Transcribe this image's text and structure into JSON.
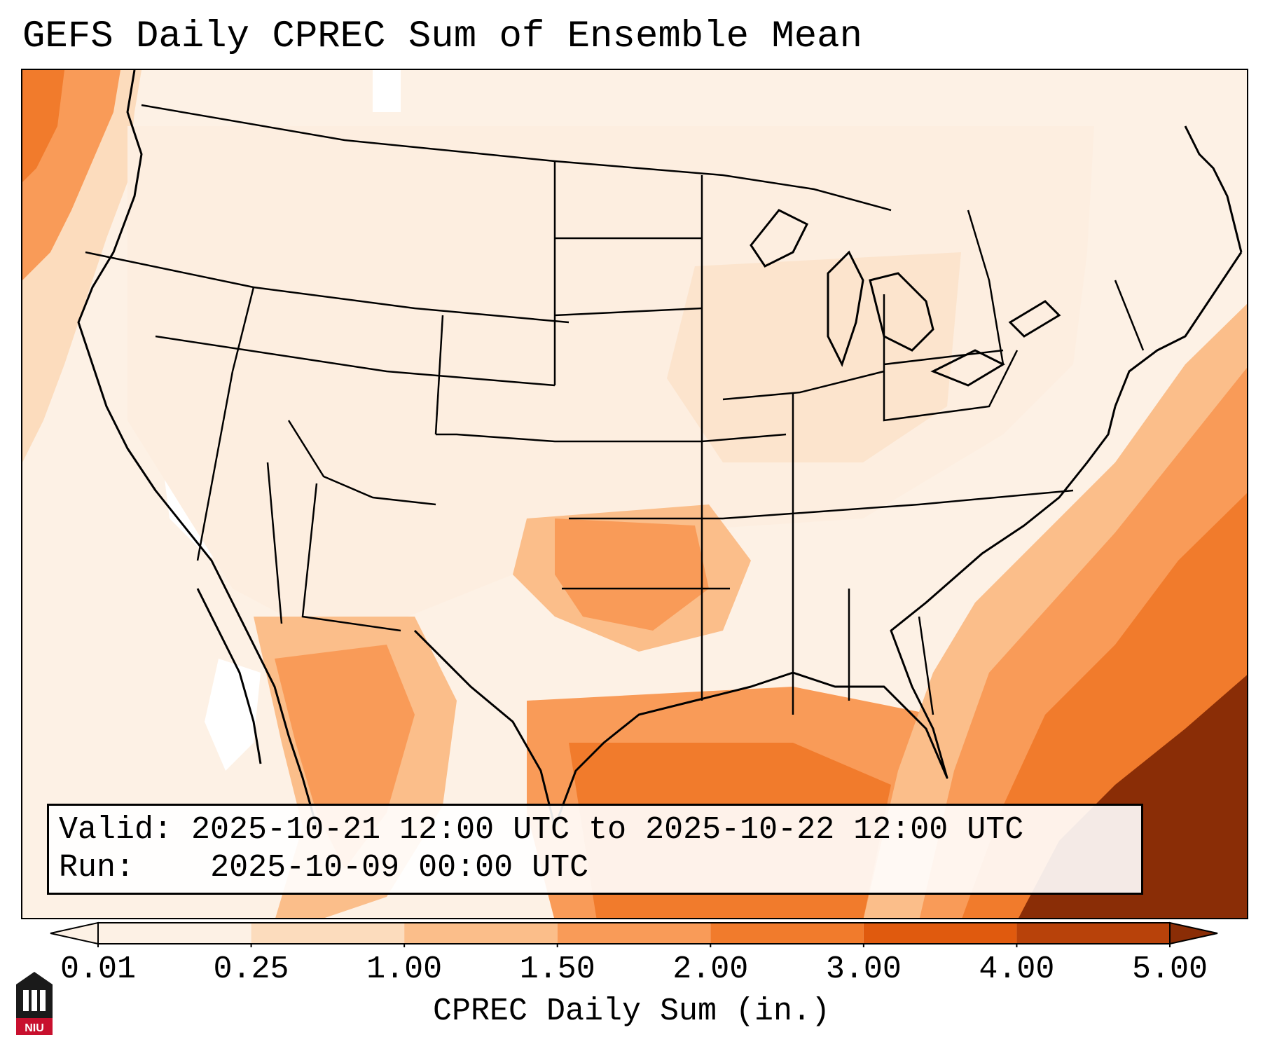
{
  "title": "GEFS Daily CPREC Sum of Ensemble Mean",
  "info": {
    "valid_label": "Valid:",
    "valid_value": "2025-10-21 12:00 UTC to 2025-10-22 12:00 UTC",
    "run_label": "Run:",
    "run_value": "2025-10-09 00:00 UTC"
  },
  "colorbar": {
    "label": "CPREC Daily Sum (in.)",
    "ticks": [
      "0.01",
      "0.25",
      "1.00",
      "1.50",
      "2.00",
      "3.00",
      "4.00",
      "5.00"
    ],
    "colors": [
      "#fdf1e5",
      "#fcdcbd",
      "#fbbe8a",
      "#f99b58",
      "#f17b2c",
      "#e05a0e",
      "#b8420a",
      "#8a2d06"
    ],
    "extend": "both"
  },
  "logo": {
    "text": "NIU"
  },
  "colors": {
    "frame": "#000000",
    "low_fill": "#fdeee0",
    "coast": "#000000"
  }
}
